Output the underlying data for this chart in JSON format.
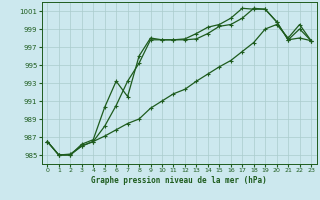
{
  "xlabel": "Graphe pression niveau de la mer (hPa)",
  "xlim": [
    -0.5,
    23.5
  ],
  "ylim": [
    984.0,
    1002.0
  ],
  "yticks": [
    985,
    987,
    989,
    991,
    993,
    995,
    997,
    999,
    1001
  ],
  "xticks": [
    0,
    1,
    2,
    3,
    4,
    5,
    6,
    7,
    8,
    9,
    10,
    11,
    12,
    13,
    14,
    15,
    16,
    17,
    18,
    19,
    20,
    21,
    22,
    23
  ],
  "bg_color": "#cce8ee",
  "grid_color": "#aacccc",
  "line_color": "#1e5c1e",
  "line1_x": [
    0,
    1,
    2,
    3,
    4,
    5,
    6,
    7,
    8,
    9,
    10,
    11,
    12,
    13,
    14,
    15,
    16,
    17,
    18,
    19,
    20,
    21,
    22,
    23
  ],
  "line1_y": [
    986.5,
    985.0,
    985.0,
    986.2,
    986.7,
    990.3,
    993.2,
    991.5,
    996.0,
    998.0,
    997.8,
    997.8,
    997.8,
    997.9,
    998.5,
    999.3,
    999.5,
    1000.2,
    1001.3,
    1001.2,
    999.8,
    997.8,
    999.0,
    997.7
  ],
  "line2_x": [
    0,
    1,
    2,
    3,
    4,
    5,
    6,
    7,
    8,
    9,
    10,
    11,
    12,
    13,
    14,
    15,
    16,
    17,
    18,
    19,
    20,
    21,
    22,
    23
  ],
  "line2_y": [
    986.5,
    985.0,
    985.1,
    986.0,
    986.5,
    987.1,
    987.8,
    988.5,
    989.0,
    990.2,
    991.0,
    991.8,
    992.3,
    993.2,
    994.0,
    994.8,
    995.5,
    996.5,
    997.5,
    999.0,
    999.5,
    998.0,
    999.5,
    997.7
  ],
  "line3_x": [
    0,
    1,
    2,
    3,
    4,
    5,
    6,
    7,
    8,
    9,
    10,
    11,
    12,
    13,
    14,
    15,
    16,
    17,
    18,
    19,
    20,
    21,
    22,
    23
  ],
  "line3_y": [
    986.5,
    985.0,
    985.0,
    986.0,
    986.5,
    988.2,
    990.5,
    993.2,
    995.2,
    997.8,
    997.8,
    997.8,
    997.9,
    998.5,
    999.2,
    999.5,
    1000.2,
    1001.3,
    1001.2,
    1001.2,
    999.8,
    997.8,
    998.0,
    997.7
  ]
}
